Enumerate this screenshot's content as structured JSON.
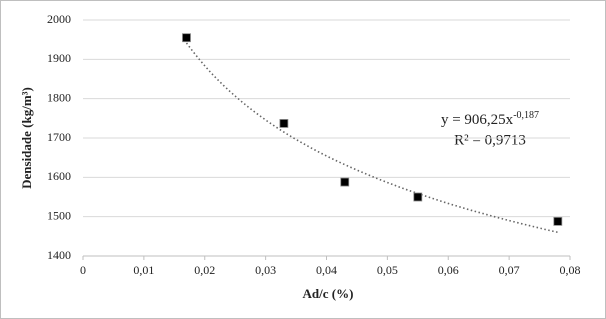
{
  "chart_data": {
    "type": "scatter",
    "x_label": "Ad/c (%)",
    "y_label": "Densidade (kg/m³)",
    "x": [
      0.017,
      0.033,
      0.043,
      0.055,
      0.078
    ],
    "series": [
      {
        "color": "#000000",
        "values": [
          1955,
          1737,
          1588,
          1550,
          1488
        ]
      }
    ],
    "xlim": [
      0,
      0.08
    ],
    "xticks": [
      0,
      {
        "value": 0.01,
        "label": "0,01"
      },
      {
        "value": 0.02,
        "label": "0,02"
      },
      {
        "value": 0.03,
        "label": "0,03"
      },
      {
        "value": 0.04,
        "label": "0,04"
      },
      {
        "value": 0.05,
        "label": "0,05"
      },
      {
        "value": 0.06,
        "label": "0,06"
      },
      {
        "value": 0.07,
        "label": "0,07"
      },
      {
        "value": 0.08,
        "label": "0,08"
      }
    ],
    "ylim": [
      1400,
      2000
    ],
    "yticks": [
      1400,
      1500,
      1600,
      1700,
      1800,
      1900,
      2000
    ],
    "grid": true,
    "trendline": {
      "kind": "power",
      "coefficient": 906.25,
      "exponent": -0.187,
      "color": "#666666",
      "equation_text": "y = 906,25x",
      "equation_exponent_text": "-0,187",
      "r2_text": "R² = 0,9713"
    }
  }
}
